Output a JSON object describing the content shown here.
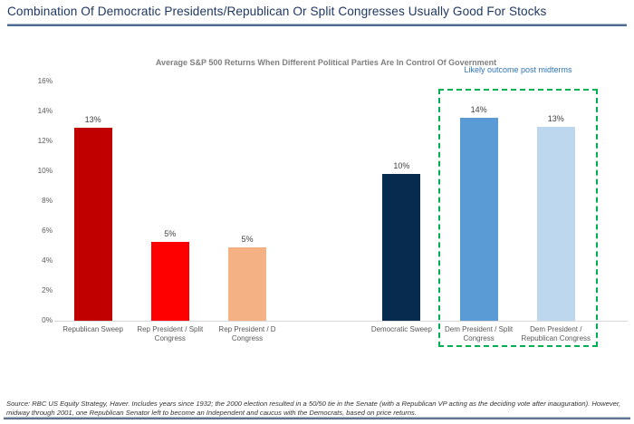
{
  "page": {
    "title": "Combination Of Democratic Presidents/Republican Or Split Congresses Usually Good For Stocks",
    "source_note": "Source: RBC US Equity Strategy, Haver. Includes years since 1932; the 2000 election resulted in a 50/50 tie in the Senate (with a Republican VP acting as the deciding vote after inauguration). However, midway through 2001, one Republican Senator left to become an Independent and caucus with the Democrats, based on price returns.",
    "accent_colors": {
      "title_text": "#1F3864",
      "rule_blue": "#4a6b94"
    }
  },
  "chart_data": {
    "type": "bar",
    "title": "Average S&P 500 Returns When Different Political Parties Are In Control Of Government",
    "categories": [
      "Republican Sweep",
      "Rep President / Split Congress",
      "Rep President / D Congress",
      "Democratic Sweep",
      "Dem President / Split Congress",
      "Dem President / Republican Congress"
    ],
    "values": [
      13,
      5,
      5,
      10,
      14,
      13
    ],
    "value_labels": [
      "13%",
      "5%",
      "5%",
      "10%",
      "14%",
      "13%"
    ],
    "visual_heights_pct": [
      12.9,
      5.3,
      4.9,
      9.8,
      13.6,
      13.0
    ],
    "bar_colors": [
      "#C00000",
      "#FF0000",
      "#F4B183",
      "#062B4F",
      "#5B9BD5",
      "#BDD7EE"
    ],
    "slot_index": [
      0,
      1,
      2,
      4,
      5,
      6
    ],
    "num_slots": 7,
    "xlabel": "",
    "ylabel": "",
    "ylim": [
      0,
      16
    ],
    "y_tick_step": 2,
    "y_tick_labels": [
      "0%",
      "2%",
      "4%",
      "6%",
      "8%",
      "10%",
      "12%",
      "14%",
      "16%"
    ],
    "grid": false,
    "annotation": {
      "label": "Likely outcome post midterms",
      "text_color": "#2E75B6",
      "box_color": "#00B050",
      "covers_categories": [
        "Dem President / Split Congress",
        "Dem President / Republican Congress"
      ]
    }
  }
}
